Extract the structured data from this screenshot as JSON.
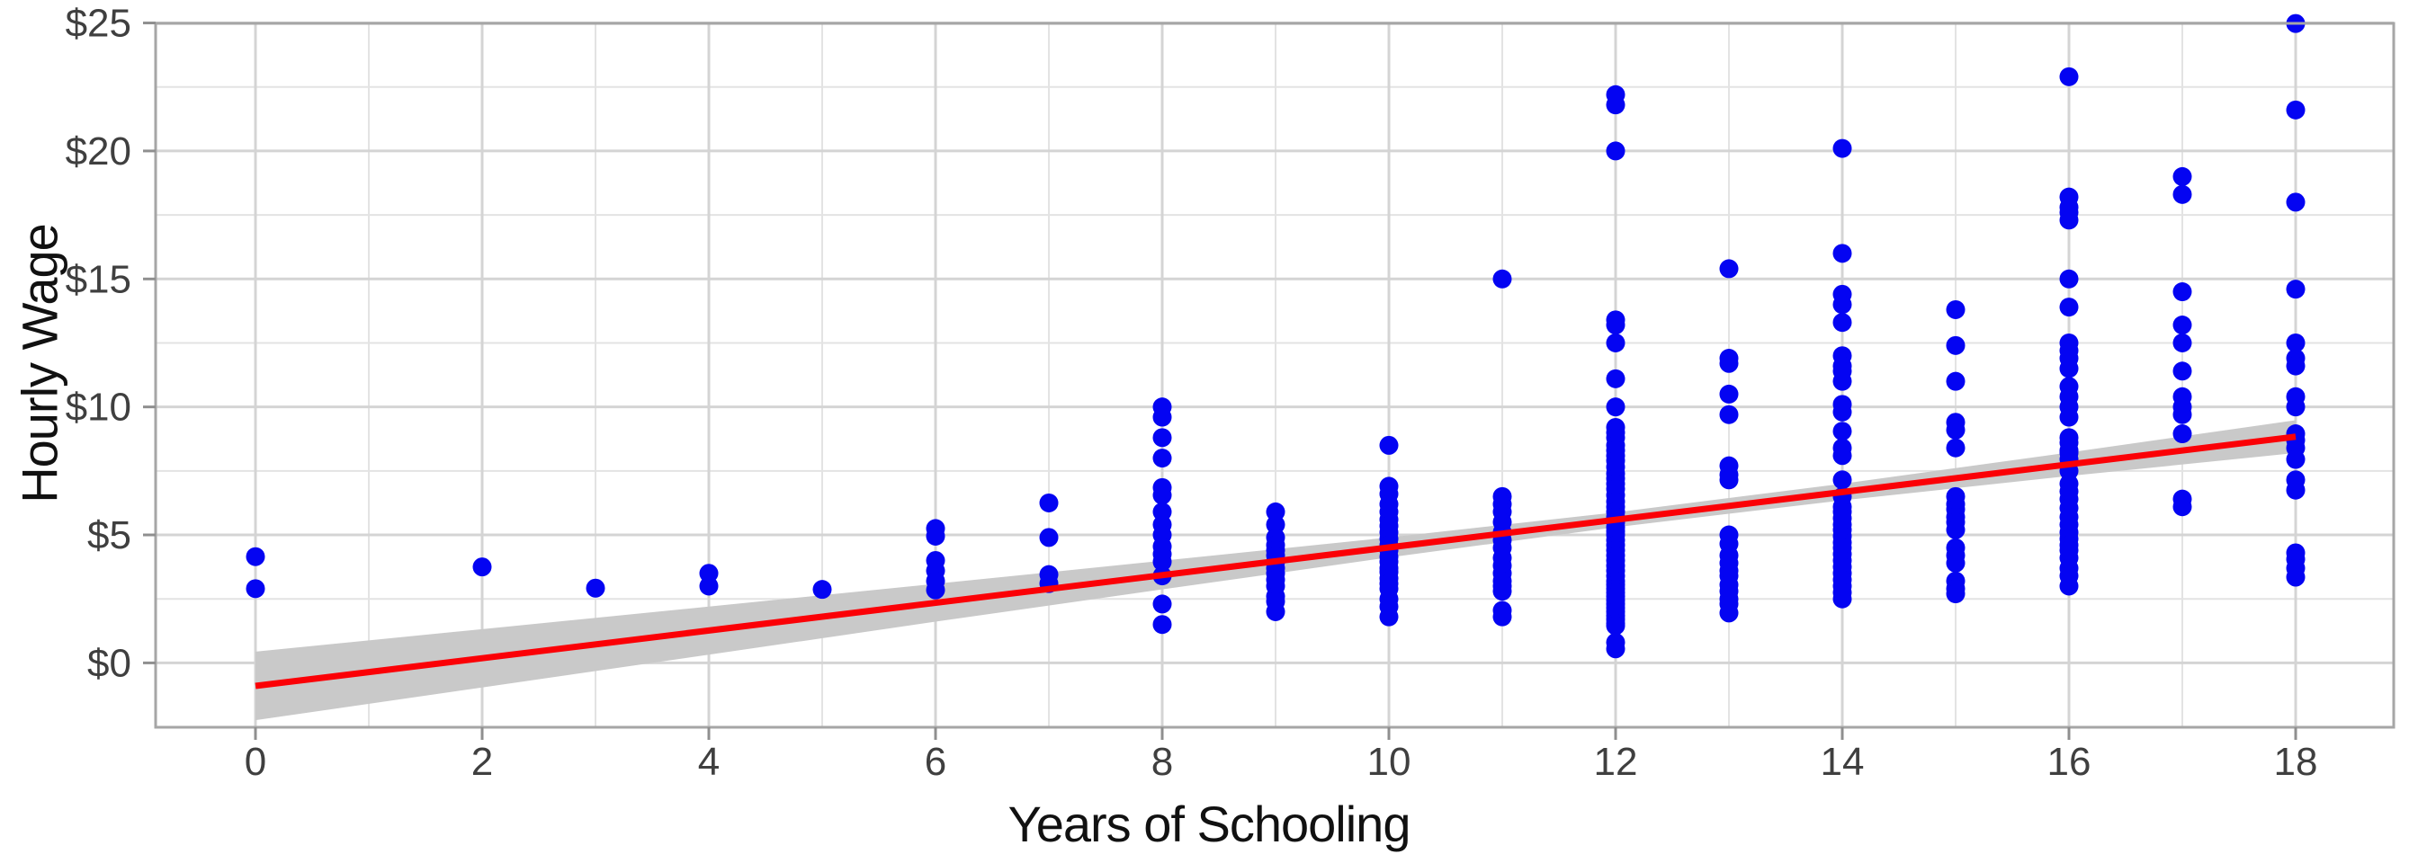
{
  "figure": {
    "x_axis_title": "Years of Schooling",
    "y_axis_title": "Hourly Wage"
  },
  "colors": {
    "point": "#0404f2",
    "regression_line": "#fb0006",
    "ci_band": "#c9c9c9",
    "grid_major": "#d4d4d4",
    "grid_minor": "#e3e3e3",
    "panel_border": "#a6a6a6",
    "tick_mark": "#8f8f8f",
    "tick_label": "#3f3f3f",
    "background": "#ffffff"
  },
  "chart_data": {
    "type": "scatter",
    "title": "",
    "xlabel": "Years of Schooling",
    "ylabel": "Hourly Wage",
    "xlim": [
      -0.9,
      18.9
    ],
    "ylim": [
      -2.5,
      25
    ],
    "grid": "major+minor",
    "legend": "none",
    "x_ticks": {
      "values": [
        0,
        2,
        4,
        6,
        8,
        10,
        12,
        14,
        16,
        18
      ],
      "labels": [
        "0",
        "2",
        "4",
        "6",
        "8",
        "10",
        "12",
        "14",
        "16",
        "18"
      ]
    },
    "y_ticks": {
      "values": [
        0,
        5,
        10,
        15,
        20,
        25
      ],
      "labels": [
        "$0",
        "$5",
        "$10",
        "$15",
        "$20",
        "$25"
      ]
    },
    "x_minor": [
      1,
      3,
      5,
      7,
      9,
      11,
      13,
      15,
      17
    ],
    "y_minor": [
      2.5,
      7.5,
      12.5,
      17.5,
      22.5
    ],
    "points_by_schooling": [
      {
        "x": 0,
        "wages": [
          4.15,
          2.9
        ]
      },
      {
        "x": 2,
        "wages": [
          3.75
        ]
      },
      {
        "x": 3,
        "wages": [
          2.92
        ]
      },
      {
        "x": 4,
        "wages": [
          3.5,
          3.0
        ]
      },
      {
        "x": 5,
        "wages": [
          2.87
        ]
      },
      {
        "x": 6,
        "wages": [
          5.25,
          4.95,
          4.0,
          3.6,
          3.2,
          2.85
        ]
      },
      {
        "x": 7,
        "wages": [
          6.25,
          4.9,
          3.45,
          3.1
        ]
      },
      {
        "x": 8,
        "wages": [
          10.0,
          9.6,
          8.8,
          8.0,
          6.85,
          6.55,
          5.9,
          5.4,
          5.0,
          4.55,
          4.25,
          3.95,
          3.4,
          2.3,
          1.5
        ]
      },
      {
        "x": 9,
        "wages": [
          5.9,
          5.4,
          4.9,
          4.6,
          4.4,
          4.2,
          3.95,
          3.7,
          3.5,
          3.25,
          3.0,
          2.6,
          2.4,
          2.0
        ]
      },
      {
        "x": 10,
        "wages": [
          8.5,
          6.9,
          6.6,
          6.2,
          5.9,
          5.6,
          5.35,
          5.1,
          4.85,
          4.6,
          4.4,
          4.15,
          3.95,
          3.7,
          3.55,
          3.3,
          3.1,
          2.9,
          2.5,
          2.2,
          1.8
        ]
      },
      {
        "x": 11,
        "wages": [
          15.0,
          6.5,
          6.2,
          5.9,
          5.5,
          5.1,
          4.8,
          4.5,
          4.1,
          3.8,
          3.5,
          3.2,
          3.0,
          2.8,
          2.05,
          1.8
        ]
      },
      {
        "x": 12,
        "wages": [
          22.2,
          21.8,
          20.0,
          13.4,
          13.2,
          12.5,
          11.1,
          10.0,
          9.2,
          9.0,
          8.8,
          8.5,
          8.3,
          8.1,
          7.9,
          7.65,
          7.4,
          7.2,
          7.0,
          6.8,
          6.55,
          6.3,
          6.1,
          5.9,
          5.7,
          5.5,
          5.3,
          5.15,
          5.0,
          4.8,
          4.6,
          4.4,
          4.2,
          4.0,
          3.8,
          3.6,
          3.4,
          3.2,
          3.05,
          2.9,
          2.75,
          2.6,
          2.45,
          2.3,
          2.15,
          2.0,
          1.85,
          1.7,
          1.55,
          1.45,
          0.8,
          0.55
        ]
      },
      {
        "x": 13,
        "wages": [
          15.4,
          11.9,
          11.7,
          10.5,
          9.7,
          7.7,
          7.35,
          7.15,
          5.0,
          4.65,
          4.2,
          3.9,
          3.6,
          3.4,
          3.05,
          2.8,
          2.5,
          2.3,
          1.95
        ]
      },
      {
        "x": 14,
        "wages": [
          20.1,
          16.0,
          14.4,
          14.0,
          13.3,
          12.0,
          11.6,
          11.4,
          11.0,
          10.1,
          9.8,
          9.05,
          8.4,
          8.1,
          7.15,
          6.5,
          6.1,
          5.9,
          5.65,
          5.4,
          5.2,
          4.95,
          4.7,
          4.5,
          4.25,
          4.0,
          3.75,
          3.5,
          3.25,
          3.0,
          2.75,
          2.5
        ]
      },
      {
        "x": 15,
        "wages": [
          13.8,
          12.4,
          11.0,
          9.4,
          9.1,
          8.4,
          6.5,
          6.2,
          6.0,
          5.7,
          5.5,
          5.2,
          4.5,
          4.2,
          3.9,
          3.2,
          2.9,
          2.7
        ]
      },
      {
        "x": 16,
        "wages": [
          22.9,
          18.2,
          17.8,
          17.6,
          17.3,
          15.0,
          13.9,
          12.5,
          12.2,
          11.9,
          11.5,
          10.8,
          10.4,
          10.0,
          9.6,
          8.8,
          8.6,
          8.3,
          8.2,
          7.95,
          7.5,
          7.0,
          6.7,
          6.4,
          6.05,
          5.7,
          5.4,
          5.1,
          4.85,
          4.6,
          4.4,
          4.1,
          3.7,
          3.4,
          3.0
        ]
      },
      {
        "x": 17,
        "wages": [
          19.0,
          18.3,
          14.5,
          13.2,
          12.5,
          11.4,
          10.4,
          10.0,
          9.7,
          8.95,
          6.4,
          6.1
        ]
      },
      {
        "x": 18,
        "wages": [
          24.98,
          21.6,
          18.0,
          14.6,
          12.5,
          11.9,
          11.6,
          10.4,
          10.0,
          8.95,
          8.7,
          8.4,
          7.95,
          7.15,
          6.75,
          4.3,
          4.05,
          3.7,
          3.35
        ]
      }
    ],
    "regression": {
      "kind": "linear",
      "intercept": -0.9,
      "slope": 0.541,
      "x_range": [
        0,
        18
      ]
    },
    "ci_band": [
      {
        "x": 0,
        "lower": -2.24,
        "upper": 0.44
      },
      {
        "x": 2,
        "lower": -0.96,
        "upper": 1.32
      },
      {
        "x": 4,
        "lower": 0.32,
        "upper": 2.2
      },
      {
        "x": 6,
        "lower": 1.61,
        "upper": 3.09
      },
      {
        "x": 8,
        "lower": 2.87,
        "upper": 3.99
      },
      {
        "x": 10,
        "lower": 4.12,
        "upper": 4.9
      },
      {
        "x": 12,
        "lower": 5.3,
        "upper": 5.88
      },
      {
        "x": 14,
        "lower": 6.35,
        "upper": 7.0
      },
      {
        "x": 16,
        "lower": 7.3,
        "upper": 8.22
      },
      {
        "x": 18,
        "lower": 8.2,
        "upper": 9.48
      }
    ]
  }
}
